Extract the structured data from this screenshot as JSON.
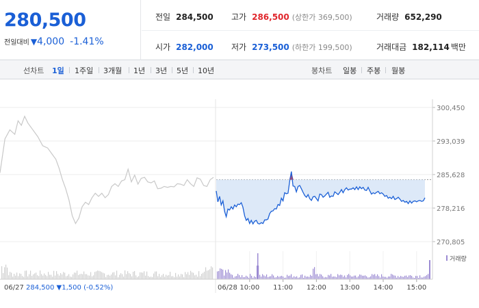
{
  "header": {
    "current_price": "280,500",
    "change_label": "전일대비",
    "change_arrow": "▼",
    "change_value": "4,000",
    "change_pct": "-1.41%",
    "stats": {
      "prev_close": {
        "label": "전일",
        "value": "284,500"
      },
      "high": {
        "label": "고가",
        "value": "286,500",
        "sub": "(상한가 369,500)"
      },
      "volume": {
        "label": "거래량",
        "value": "652,290"
      },
      "open": {
        "label": "시가",
        "value": "282,000"
      },
      "low": {
        "label": "저가",
        "value": "273,500",
        "sub": "(하한가 199,500)"
      },
      "amount": {
        "label": "거래대금",
        "value": "182,114",
        "unit": "백만"
      }
    }
  },
  "tabs": {
    "line_label": "선차트",
    "line_items": [
      "1일",
      "1주일",
      "3개월",
      "1년",
      "3년",
      "5년",
      "10년"
    ],
    "active": "1일",
    "candle_label": "봉차트",
    "candle_items": [
      "일봉",
      "주봉",
      "월봉"
    ]
  },
  "colors": {
    "up": "#e0262c",
    "down": "#1a5fd6",
    "prev_day_line": "#c8c8c8",
    "fill": "#dde9f8",
    "volume_today": "#9c8bd3",
    "volume_prev": "#cfcfcf"
  },
  "chart_data": {
    "type": "line",
    "y_ticks": [
      "300,450",
      "293,039",
      "285,628",
      "278,216",
      "270,805"
    ],
    "ylim": [
      270805,
      300450
    ],
    "x_ticks": [
      "06/27",
      "06/28",
      "10:00",
      "11:00",
      "12:00",
      "13:00",
      "14:00",
      "15:00"
    ],
    "reference_price": 284500,
    "volume_legend": "거래량",
    "prev_day_footer": {
      "date": "06/27",
      "price": "284,500",
      "arrow": "▼",
      "change": "1,500",
      "pct": "(-0.52%)"
    },
    "prev_day_series": [
      [
        0,
        286000
      ],
      [
        0.15,
        293500
      ],
      [
        0.3,
        295500
      ],
      [
        0.45,
        294500
      ],
      [
        0.55,
        297500
      ],
      [
        0.65,
        296500
      ],
      [
        0.75,
        298500
      ],
      [
        0.85,
        297000
      ],
      [
        1,
        295500
      ],
      [
        1.15,
        294000
      ],
      [
        1.3,
        292000
      ],
      [
        1.45,
        291500
      ],
      [
        1.6,
        290000
      ],
      [
        1.7,
        289000
      ],
      [
        1.8,
        287000
      ],
      [
        1.9,
        284500
      ],
      [
        2.0,
        282500
      ],
      [
        2.1,
        280000
      ],
      [
        2.2,
        276500
      ],
      [
        2.3,
        274800
      ],
      [
        2.4,
        276000
      ],
      [
        2.5,
        278500
      ],
      [
        2.6,
        279500
      ],
      [
        2.7,
        279000
      ],
      [
        2.8,
        280500
      ],
      [
        2.9,
        281500
      ],
      [
        3.0,
        280800
      ],
      [
        3.1,
        281500
      ],
      [
        3.2,
        280500
      ],
      [
        3.3,
        281200
      ],
      [
        3.4,
        283000
      ],
      [
        3.5,
        283600
      ],
      [
        3.6,
        283000
      ],
      [
        3.7,
        284200
      ],
      [
        3.8,
        284500
      ],
      [
        3.9,
        286800
      ],
      [
        4.0,
        284000
      ],
      [
        4.1,
        285500
      ],
      [
        4.2,
        283500
      ],
      [
        4.3,
        284800
      ],
      [
        4.4,
        285000
      ],
      [
        4.5,
        284000
      ],
      [
        4.6,
        283800
      ],
      [
        4.7,
        284200
      ],
      [
        4.8,
        282500
      ],
      [
        4.9,
        282600
      ],
      [
        5.0,
        283000
      ],
      [
        5.1,
        282800
      ],
      [
        5.2,
        283000
      ],
      [
        5.3,
        282900
      ],
      [
        5.4,
        283600
      ],
      [
        5.5,
        283500
      ],
      [
        5.6,
        283200
      ],
      [
        5.7,
        284500
      ],
      [
        5.8,
        283600
      ],
      [
        5.9,
        283000
      ],
      [
        6.0,
        284900
      ],
      [
        6.1,
        284600
      ],
      [
        6.2,
        283200
      ],
      [
        6.3,
        283000
      ],
      [
        6.4,
        284500
      ],
      [
        6.5,
        285000
      ]
    ],
    "today_series": [
      [
        9.0,
        282000
      ],
      [
        9.05,
        279600
      ],
      [
        9.1,
        280800
      ],
      [
        9.15,
        278900
      ],
      [
        9.2,
        279800
      ],
      [
        9.25,
        277500
      ],
      [
        9.3,
        276300
      ],
      [
        9.35,
        278000
      ],
      [
        9.4,
        277800
      ],
      [
        9.45,
        278500
      ],
      [
        9.5,
        278000
      ],
      [
        9.55,
        278900
      ],
      [
        9.6,
        278500
      ],
      [
        9.65,
        279100
      ],
      [
        9.7,
        279000
      ],
      [
        9.75,
        279400
      ],
      [
        9.8,
        278400
      ],
      [
        9.85,
        276500
      ],
      [
        9.9,
        275500
      ],
      [
        9.95,
        275900
      ],
      [
        10.0,
        274800
      ],
      [
        10.05,
        275500
      ],
      [
        10.1,
        274700
      ],
      [
        10.15,
        275300
      ],
      [
        10.2,
        275500
      ],
      [
        10.25,
        274800
      ],
      [
        10.3,
        274700
      ],
      [
        10.35,
        275000
      ],
      [
        10.4,
        274800
      ],
      [
        10.45,
        275600
      ],
      [
        10.5,
        275600
      ],
      [
        10.55,
        275800
      ],
      [
        10.6,
        277000
      ],
      [
        10.65,
        277500
      ],
      [
        10.7,
        277600
      ],
      [
        10.75,
        278100
      ],
      [
        10.8,
        278000
      ],
      [
        10.85,
        279000
      ],
      [
        10.9,
        278800
      ],
      [
        10.95,
        280400
      ],
      [
        11.0,
        279800
      ],
      [
        11.05,
        281600
      ],
      [
        11.1,
        281400
      ],
      [
        11.15,
        281500
      ],
      [
        11.2,
        284200
      ],
      [
        11.25,
        286300
      ],
      [
        11.3,
        283100
      ],
      [
        11.35,
        283000
      ],
      [
        11.4,
        281800
      ],
      [
        11.45,
        283000
      ],
      [
        11.5,
        283200
      ],
      [
        11.55,
        282500
      ],
      [
        11.6,
        281700
      ],
      [
        11.65,
        281000
      ],
      [
        11.7,
        280600
      ],
      [
        11.75,
        281200
      ],
      [
        11.8,
        280300
      ],
      [
        11.85,
        279900
      ],
      [
        11.9,
        280700
      ],
      [
        11.95,
        280800
      ],
      [
        12.0,
        280300
      ],
      [
        12.05,
        279800
      ],
      [
        12.1,
        281300
      ],
      [
        12.15,
        281200
      ],
      [
        12.2,
        280600
      ],
      [
        12.25,
        280900
      ],
      [
        12.3,
        281300
      ],
      [
        12.35,
        281700
      ],
      [
        12.4,
        280600
      ],
      [
        12.45,
        280900
      ],
      [
        12.5,
        280800
      ],
      [
        12.55,
        281800
      ],
      [
        12.6,
        281500
      ],
      [
        12.65,
        281200
      ],
      [
        12.7,
        281700
      ],
      [
        12.75,
        282300
      ],
      [
        12.8,
        281600
      ],
      [
        12.85,
        282300
      ],
      [
        12.9,
        282700
      ],
      [
        12.95,
        282200
      ],
      [
        13.0,
        282400
      ],
      [
        13.05,
        282400
      ],
      [
        13.1,
        282700
      ],
      [
        13.15,
        282300
      ],
      [
        13.2,
        282900
      ],
      [
        13.25,
        282300
      ],
      [
        13.3,
        282900
      ],
      [
        13.35,
        282500
      ],
      [
        13.4,
        282800
      ],
      [
        13.45,
        282200
      ],
      [
        13.5,
        282100
      ],
      [
        13.55,
        282800
      ],
      [
        13.6,
        282000
      ],
      [
        13.65,
        281300
      ],
      [
        13.7,
        281600
      ],
      [
        13.75,
        281400
      ],
      [
        13.8,
        281700
      ],
      [
        13.85,
        281900
      ],
      [
        13.9,
        281400
      ],
      [
        13.95,
        281600
      ],
      [
        14.0,
        281300
      ],
      [
        14.05,
        280800
      ],
      [
        14.1,
        281000
      ],
      [
        14.15,
        280400
      ],
      [
        14.2,
        280600
      ],
      [
        14.25,
        280300
      ],
      [
        14.3,
        280800
      ],
      [
        14.35,
        280100
      ],
      [
        14.4,
        280300
      ],
      [
        14.45,
        280600
      ],
      [
        14.5,
        280200
      ],
      [
        14.55,
        279700
      ],
      [
        14.6,
        279900
      ],
      [
        14.65,
        279500
      ],
      [
        14.7,
        279700
      ],
      [
        14.75,
        279200
      ],
      [
        14.8,
        279800
      ],
      [
        14.85,
        279300
      ],
      [
        14.9,
        279700
      ],
      [
        14.95,
        279800
      ],
      [
        15.0,
        279600
      ],
      [
        15.05,
        279800
      ],
      [
        15.1,
        279900
      ],
      [
        15.15,
        279700
      ],
      [
        15.2,
        279800
      ],
      [
        15.25,
        280500
      ]
    ]
  }
}
